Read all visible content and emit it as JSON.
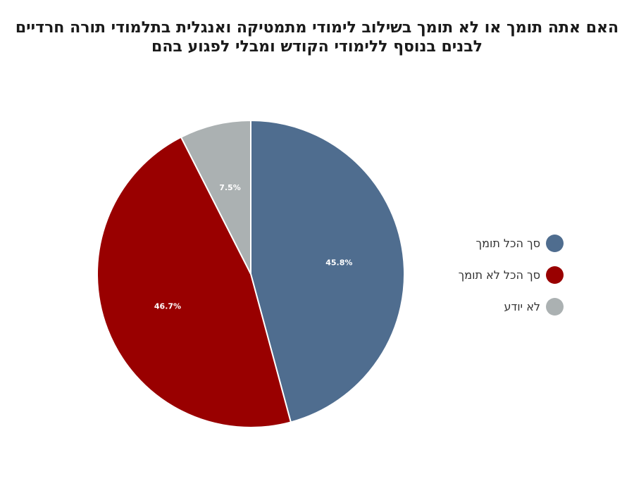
{
  "title": {
    "line1": "האם אתה תומך או לא תומך בשילוב לימודי מתמטיקה ואנגלית בתלמודי תורה חרדיים",
    "line2": "לבנים בנוסף ללימודי הקודש ומבלי לפגוע בהם"
  },
  "chart_data": {
    "type": "pie",
    "title": "האם אתה תומך או לא תומך בשילוב לימודי מתמטיקה ואנגלית בתלמודי תורה חרדיים לבנים בנוסף ללימודי הקודש ומבלי לפגוע בהם",
    "slices": [
      {
        "label": "סך הכל תומך",
        "value": 45.8,
        "display": "45.8%",
        "color": "#4f6d8f"
      },
      {
        "label": "סך הכל לא תומך",
        "value": 46.7,
        "display": "46.7%",
        "color": "#990000"
      },
      {
        "label": "לא יודע",
        "value": 7.5,
        "display": "7.5%",
        "color": "#abb1b2"
      }
    ],
    "legend_position": "right",
    "start": "top",
    "direction": "clockwise"
  }
}
